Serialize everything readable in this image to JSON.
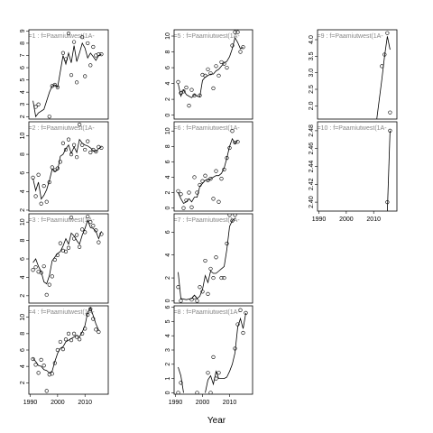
{
  "chart_data": {
    "type": "scatter",
    "xlabel": "Year",
    "xlim": [
      1989.5,
      2018.5
    ],
    "xticks": [
      1990,
      2000,
      2010
    ],
    "panels": [
      {
        "strip": "s=1 : f=Paamiutwest(1A-",
        "ylim": [
          1.8,
          9.1
        ],
        "yticks": [
          2,
          3,
          4,
          5,
          6,
          7,
          8,
          9
        ],
        "x": [
          1991,
          1992,
          1993,
          1995,
          1997,
          1998,
          1999,
          2000,
          2002,
          2003,
          2004,
          2005,
          2006,
          2007,
          2008,
          2009,
          2010,
          2011,
          2012,
          2013,
          2014,
          2015,
          2016
        ],
        "points": [
          null,
          2.8,
          3.0,
          null,
          2.0,
          4.5,
          4.6,
          4.4,
          7.2,
          6.7,
          8.8,
          5.4,
          8.1,
          4.8,
          null,
          8.5,
          5.3,
          8.0,
          6.2,
          7.7,
          7.0,
          7.1,
          7.1
        ],
        "fit": [
          3.3,
          2.0,
          2.3,
          2.6,
          4.0,
          4.5,
          4.6,
          4.4,
          7.0,
          6.3,
          7.2,
          6.4,
          7.8,
          6.5,
          7.2,
          8.0,
          7.6,
          6.8,
          7.2,
          6.9,
          6.6,
          7.0,
          7.1
        ]
      },
      {
        "strip": "s=2 : f=Paamiutwest(1A-",
        "ylim": [
          1.9,
          11.5
        ],
        "yticks": [
          2,
          4,
          6,
          8,
          10
        ],
        "x": [
          1991,
          1992,
          1993,
          1994,
          1995,
          1996,
          1997,
          1998,
          1999,
          2000,
          2001,
          2002,
          2003,
          2004,
          2005,
          2006,
          2007,
          2008,
          2009,
          2010,
          2011,
          2012,
          2013,
          2014,
          2015,
          2016
        ],
        "points": [
          5.5,
          3.5,
          5.8,
          2.7,
          4.6,
          2.9,
          5.0,
          6.6,
          6.3,
          6.5,
          7.2,
          9.2,
          8.5,
          9.6,
          8.0,
          9.0,
          7.7,
          11.2,
          9.0,
          8.5,
          9.4,
          8.2,
          8.5,
          8.3,
          8.8,
          8.7
        ],
        "fit": [
          5.4,
          4.1,
          5.0,
          3.2,
          3.6,
          4.2,
          5.2,
          6.4,
          6.2,
          6.3,
          7.8,
          8.0,
          8.6,
          9.0,
          8.1,
          8.8,
          8.2,
          9.6,
          9.2,
          9.0,
          8.9,
          8.7,
          8.4,
          8.3,
          8.6,
          8.8
        ]
      },
      {
        "strip": "s=3 : f=Paamiutwest(1A-",
        "ylim": [
          1.2,
          10.9
        ],
        "yticks": [
          2,
          4,
          6,
          8,
          10
        ],
        "x": [
          1991,
          1992,
          1993,
          1994,
          1995,
          1996,
          1997,
          1998,
          1999,
          2000,
          2001,
          2002,
          2003,
          2004,
          2005,
          2006,
          2007,
          2008,
          2009,
          2010,
          2011,
          2012,
          2013,
          2014,
          2015,
          2016
        ],
        "points": [
          4.8,
          5.1,
          4.6,
          4.5,
          5.2,
          2.1,
          3.2,
          4.1,
          5.9,
          6.4,
          7.7,
          6.9,
          6.8,
          7.2,
          10.5,
          8.2,
          8.6,
          7.3,
          9.2,
          8.9,
          10.6,
          10.0,
          9.6,
          9.1,
          7.8,
          8.7
        ],
        "fit": [
          5.6,
          6.0,
          5.2,
          4.6,
          3.5,
          3.3,
          4.2,
          5.8,
          6.2,
          6.6,
          6.8,
          7.4,
          8.2,
          7.6,
          8.8,
          8.5,
          8.0,
          7.6,
          8.6,
          9.3,
          10.2,
          9.4,
          9.3,
          9.0,
          8.2,
          9.0
        ]
      },
      {
        "strip": "s=4 : f=Paamiutwest(1A-",
        "ylim": [
          0.6,
          11.4
        ],
        "yticks": [
          2,
          4,
          6,
          8,
          10
        ],
        "x": [
          1991,
          1992,
          1993,
          1994,
          1995,
          1996,
          1997,
          1998,
          1999,
          2000,
          2001,
          2002,
          2003,
          2004,
          2005,
          2006,
          2007,
          2008,
          2009,
          2010,
          2011,
          2012,
          2013,
          2014,
          2015
        ],
        "points": [
          4.9,
          4.2,
          3.2,
          4.8,
          4.1,
          1.0,
          3.0,
          3.1,
          4.4,
          6.0,
          7.0,
          6.1,
          7.3,
          8.0,
          7.2,
          8.0,
          7.6,
          7.3,
          8.0,
          8.6,
          10.3,
          11.0,
          9.8,
          8.5,
          8.2
        ],
        "fit": [
          5.0,
          4.6,
          4.1,
          4.0,
          3.6,
          3.5,
          3.2,
          3.4,
          4.6,
          5.6,
          6.2,
          6.4,
          7.0,
          7.2,
          7.4,
          7.6,
          7.8,
          7.6,
          8.2,
          9.0,
          10.6,
          11.2,
          10.2,
          9.2,
          8.4
        ]
      },
      {
        "strip": "s=5 : f=Paamiutwest(1A-",
        "ylim": [
          -0.5,
          10.8
        ],
        "yticks": [
          0,
          2,
          4,
          6,
          8,
          10
        ],
        "x": [
          1991,
          1992,
          1993,
          1994,
          1995,
          1996,
          1997,
          1998,
          1999,
          2000,
          2001,
          2002,
          2003,
          2004,
          2005,
          2006,
          2007,
          2008,
          2009,
          2010,
          2011,
          2012,
          2013,
          2014,
          2015
        ],
        "points": [
          4.2,
          2.8,
          3.0,
          3.5,
          1.2,
          3.2,
          2.5,
          null,
          2.5,
          5.1,
          5.0,
          5.8,
          5.3,
          3.4,
          6.2,
          5.0,
          6.7,
          6.5,
          6.0,
          null,
          8.8,
          10.5,
          10.5,
          8.0,
          8.6
        ],
        "fit": [
          4.0,
          2.4,
          3.2,
          2.6,
          2.4,
          2.2,
          2.6,
          2.4,
          2.3,
          4.4,
          4.8,
          5.0,
          5.2,
          5.2,
          5.6,
          5.8,
          6.2,
          6.6,
          6.8,
          7.4,
          8.4,
          9.8,
          9.2,
          8.4,
          8.6
        ]
      },
      {
        "strip": "s=6 : f=Paamiutwest(1A-",
        "ylim": [
          -0.4,
          11.2
        ],
        "yticks": [
          0,
          2,
          4,
          6,
          8,
          10
        ],
        "x": [
          1991,
          1992,
          1993,
          1994,
          1995,
          1996,
          1997,
          1998,
          1999,
          2000,
          2001,
          2002,
          2003,
          2004,
          2005,
          2006,
          2007,
          2008,
          2009,
          2010,
          2011,
          2012,
          2013
        ],
        "points": [
          2.2,
          1.8,
          0.0,
          1.0,
          2.0,
          0.1,
          4.0,
          2.0,
          3.0,
          3.5,
          4.2,
          3.6,
          3.8,
          1.2,
          4.8,
          0.8,
          3.8,
          5.0,
          6.5,
          7.8,
          10.0,
          8.5,
          8.6
        ],
        "fit": [
          2.0,
          1.2,
          0.6,
          0.8,
          1.2,
          0.8,
          1.4,
          1.4,
          2.8,
          3.2,
          3.6,
          3.6,
          3.8,
          4.0,
          4.2,
          4.2,
          4.5,
          5.2,
          6.5,
          8.0,
          9.0,
          8.4,
          8.8
        ]
      },
      {
        "strip": "s=7 : f=Paamiutwest(1A-",
        "ylim": [
          -0.2,
          7.6
        ],
        "yticks": [
          0,
          2,
          4,
          6
        ],
        "x": [
          1991,
          1992,
          1994,
          1996,
          1997,
          1998,
          1999,
          2000,
          2001,
          2002,
          2003,
          2004,
          2005,
          2006,
          2007,
          2008,
          2009,
          2010,
          2011,
          2012,
          2013,
          2014
        ],
        "points": [
          1.2,
          0.0,
          null,
          0.1,
          0.3,
          0.0,
          1.2,
          0.8,
          3.5,
          0.6,
          2.8,
          2.0,
          3.8,
          null,
          2.0,
          2.0,
          5.0,
          7.5,
          7.0,
          7.5,
          null,
          null
        ],
        "fit": [
          2.5,
          0.2,
          0.1,
          0.2,
          0.5,
          0.2,
          0.4,
          1.0,
          2.2,
          1.6,
          2.6,
          2.4,
          2.4,
          2.6,
          2.8,
          3.0,
          4.5,
          6.5,
          7.0,
          7.2,
          null,
          null
        ]
      },
      {
        "strip": "s=8 : f=Paamiutwest(1A-",
        "ylim": [
          -0.1,
          6.1
        ],
        "yticks": [
          0,
          1,
          2,
          3,
          4,
          5,
          6
        ],
        "x": [
          1991,
          1992,
          1993,
          1998,
          2001,
          2002,
          2003,
          2004,
          2005,
          2006,
          2007,
          2008,
          2009,
          2010,
          2011,
          2012,
          2013,
          2014,
          2015,
          2016
        ],
        "points": [
          0.0,
          0.7,
          null,
          0.0,
          null,
          1.4,
          0.0,
          2.5,
          1.0,
          1.4,
          null,
          null,
          null,
          null,
          null,
          3.1,
          4.8,
          5.8,
          4.2,
          5.6
        ],
        "fit": [
          1.8,
          1.2,
          0.0,
          null,
          0.0,
          0.9,
          1.2,
          0.6,
          1.5,
          1.0,
          1.0,
          1.0,
          1.1,
          1.5,
          2.0,
          2.8,
          4.6,
          5.2,
          4.5,
          5.6
        ]
      },
      {
        "strip": "s=9 : f=Paamiutwest(1A-",
        "ylim": [
          1.6,
          4.3
        ],
        "yticks": [
          {
            "value": 2,
            "label": "2.0"
          },
          {
            "value": 2.5,
            "label": "2.5"
          },
          {
            "value": 3,
            "label": "3.0"
          },
          {
            "value": 3.5,
            "label": "3.5"
          },
          {
            "value": 4,
            "label": "4.0"
          }
        ],
        "x": [
          2011,
          2013,
          2014,
          2015,
          2016
        ],
        "points": [
          null,
          3.2,
          3.55,
          4.2,
          1.8
        ],
        "fit": [
          1.5,
          2.8,
          3.5,
          4.1,
          3.7
        ]
      },
      {
        "strip": "s=10 : f=Paamiutwest(1A-",
        "ylim": [
          2.39,
          2.49
        ],
        "yticks": [
          {
            "value": 2.4,
            "label": "2.40"
          },
          {
            "value": 2.42,
            "label": "2.42"
          },
          {
            "value": 2.44,
            "label": "2.44"
          },
          {
            "value": 2.46,
            "label": "2.46"
          },
          {
            "value": 2.48,
            "label": "2.48"
          }
        ],
        "x": [
          2015,
          2016
        ],
        "points": [
          2.4,
          2.48
        ],
        "fit": [
          2.39,
          2.48
        ]
      }
    ]
  }
}
